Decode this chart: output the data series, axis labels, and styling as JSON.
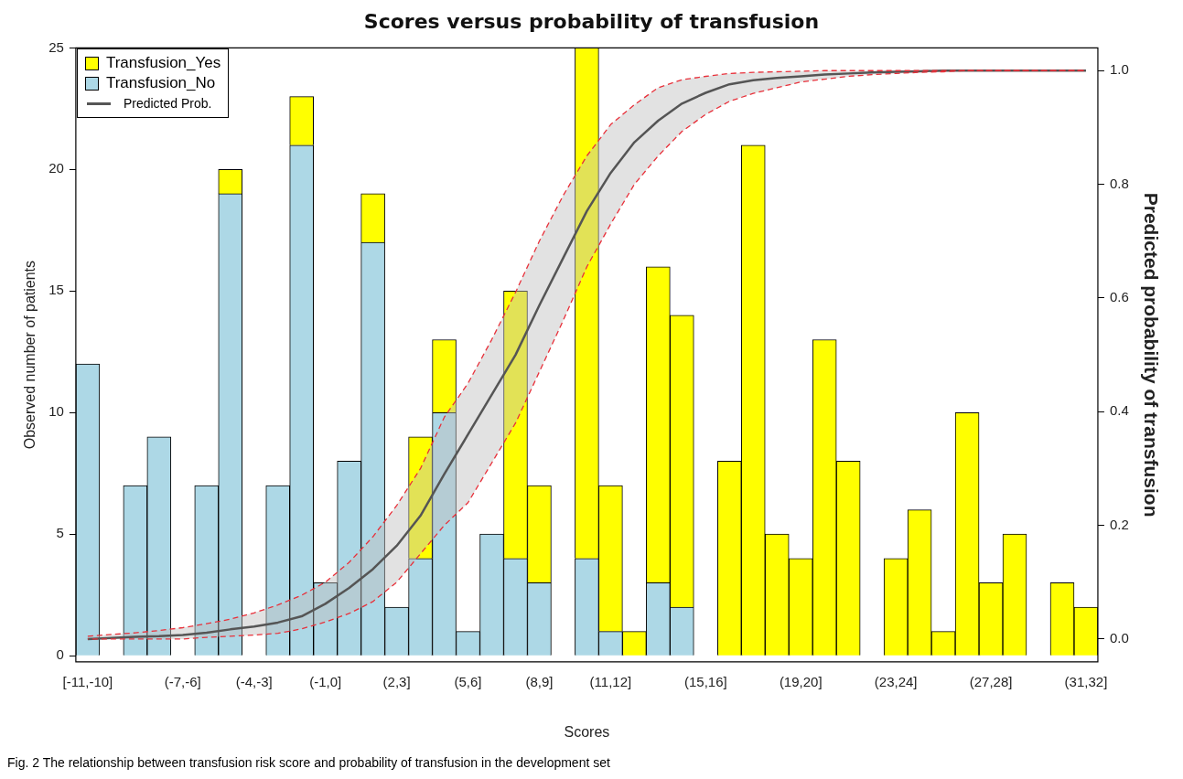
{
  "chart_data": {
    "type": "bar",
    "title": "Scores versus probability of transfusion",
    "xlabel": "Scores",
    "ylabel": "Observed number of patients",
    "y2label": "Predicted probability of transfusion",
    "categories": [
      "[-11,-10]",
      null,
      null,
      null,
      "(-7,-6]",
      null,
      null,
      "(-4,-3]",
      null,
      null,
      "(-1,0]",
      null,
      null,
      "(2,3]",
      null,
      null,
      "(5,6]",
      null,
      null,
      "(8,9]",
      null,
      null,
      "(11,12]",
      null,
      null,
      null,
      "(15,16]",
      null,
      null,
      null,
      "(19,20]",
      null,
      null,
      null,
      "(23,24]",
      null,
      null,
      null,
      "(27,28]",
      null,
      null,
      null,
      "(31,32]"
    ],
    "stacked": true,
    "series": [
      {
        "name": "Transfusion_No",
        "color": "#add8e6",
        "values": [
          12,
          0,
          7,
          9,
          0,
          7,
          19,
          0,
          7,
          21,
          3,
          8,
          17,
          2,
          4,
          10,
          1,
          5,
          4,
          3,
          0,
          4,
          1,
          0,
          3,
          2,
          0,
          0,
          0,
          0,
          0,
          0,
          0,
          0,
          0,
          0,
          0,
          0,
          0,
          0,
          0,
          0,
          0
        ]
      },
      {
        "name": "Transfusion_Yes",
        "color": "#ffff00",
        "values": [
          0,
          0,
          0,
          0,
          0,
          0,
          1,
          0,
          0,
          2,
          0,
          0,
          2,
          0,
          5,
          3,
          0,
          0,
          11,
          4,
          0,
          21,
          6,
          1,
          13,
          12,
          0,
          8,
          21,
          5,
          4,
          13,
          8,
          0,
          4,
          6,
          1,
          10,
          3,
          5,
          0,
          3,
          2
        ]
      },
      {
        "name": "Predicted Prob.",
        "type": "line",
        "axis": "y2",
        "color": "#555555",
        "values": [
          0,
          0.002,
          0.004,
          0.005,
          0.007,
          0.011,
          0.017,
          0.022,
          0.029,
          0.04,
          0.062,
          0.09,
          0.123,
          0.164,
          0.217,
          0.29,
          0.36,
          0.43,
          0.5,
          0.587,
          0.67,
          0.753,
          0.82,
          0.874,
          0.912,
          0.942,
          0.961,
          0.976,
          0.983,
          0.987,
          0.99,
          0.993,
          0.995,
          0.997,
          0.998,
          0.999,
          1,
          1,
          1,
          1,
          1,
          1,
          1
        ],
        "lower": [
          0,
          0,
          0,
          0,
          0,
          0.003,
          0.005,
          0.007,
          0.01,
          0.018,
          0.03,
          0.045,
          0.066,
          0.1,
          0.15,
          0.2,
          0.24,
          0.31,
          0.38,
          0.47,
          0.56,
          0.655,
          0.73,
          0.8,
          0.85,
          0.893,
          0.923,
          0.946,
          0.96,
          0.97,
          0.98,
          0.985,
          0.99,
          0.993,
          0.995,
          0.997,
          0.998,
          1,
          1,
          1,
          1,
          1,
          1
        ],
        "upper": [
          0.005,
          0.008,
          0.011,
          0.015,
          0.02,
          0.027,
          0.035,
          0.046,
          0.06,
          0.077,
          0.1,
          0.135,
          0.18,
          0.235,
          0.3,
          0.39,
          0.45,
          0.527,
          0.61,
          0.7,
          0.78,
          0.85,
          0.905,
          0.94,
          0.97,
          0.984,
          0.99,
          0.995,
          0.997,
          0.998,
          0.999,
          1,
          1,
          1,
          1,
          1,
          1,
          1,
          1,
          1,
          1,
          1,
          1
        ]
      },
      {
        "type": "line",
        "axis": "y2",
        "color": "#e8303a",
        "line_style": "dashed",
        "values": [
          0,
          0,
          0,
          0,
          0,
          0.003,
          0.005,
          0.007,
          0.01,
          0.018,
          0.03,
          0.045,
          0.066,
          0.1,
          0.15,
          0.2,
          0.24,
          0.31,
          0.38,
          0.47,
          0.56,
          0.655,
          0.73,
          0.8,
          0.85,
          0.893,
          0.923,
          0.946,
          0.96,
          0.97,
          0.98,
          0.985,
          0.99,
          0.993,
          0.995,
          0.997,
          0.998,
          1,
          1,
          1,
          1,
          1,
          1
        ]
      },
      {
        "type": "line",
        "axis": "y2",
        "color": "#e8303a",
        "line_style": "dashed",
        "values": [
          0.005,
          0.008,
          0.011,
          0.015,
          0.02,
          0.027,
          0.035,
          0.046,
          0.06,
          0.077,
          0.1,
          0.135,
          0.18,
          0.235,
          0.3,
          0.39,
          0.45,
          0.527,
          0.61,
          0.7,
          0.78,
          0.85,
          0.905,
          0.94,
          0.97,
          0.984,
          0.99,
          0.995,
          0.997,
          0.998,
          0.999,
          1,
          1,
          1,
          1,
          1,
          1,
          1,
          1,
          1,
          1,
          1,
          1
        ]
      }
    ],
    "ylim": [
      -0.25,
      25
    ],
    "yticks": [
      0,
      5,
      10,
      15,
      20,
      25
    ],
    "y2lim": [
      -0.04,
      1.04
    ],
    "y2ticks": [
      {
        "value": 0,
        "label": "0.0"
      },
      {
        "value": 0.2,
        "label": "0.2"
      },
      {
        "value": 0.4,
        "label": "0.4"
      },
      {
        "value": 0.6,
        "label": "0.6"
      },
      {
        "value": 0.8,
        "label": "0.8"
      },
      {
        "value": 1,
        "label": "1.0"
      }
    ],
    "legend": "top left",
    "grid": false,
    "marker": "none",
    "line_style": "solid",
    "annotations": [
      "Fig. 2  The relationship between transfusion risk score and probability of transfusion in the development set"
    ]
  }
}
